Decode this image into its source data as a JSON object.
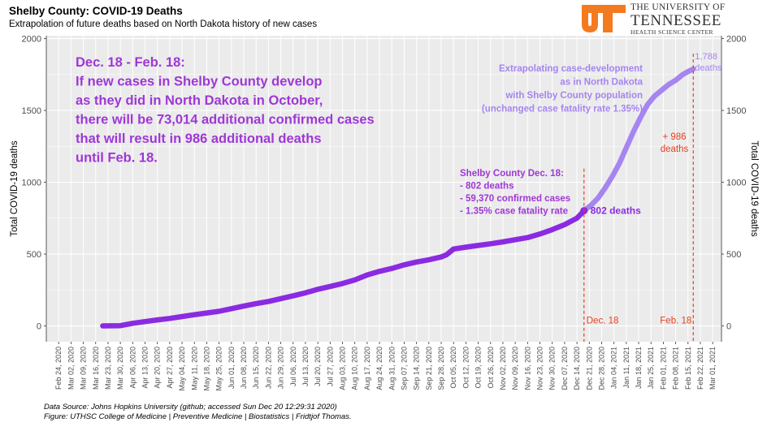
{
  "header": {
    "title": "Shelby County: COVID-19 Deaths",
    "subtitle": "Extrapolation of future deaths based on North Dakota history of new cases"
  },
  "logo": {
    "line1": "THE UNIVERSITY OF",
    "line2": "TENNESSEE",
    "line3": "HEALTH SCIENCE CENTER",
    "mark_color": "#F47A20"
  },
  "footer": {
    "source": "Data Source: Johns Hopkins University (github; accessed Sun Dec 20 12:29:31 2020)",
    "credit": "Figure: UTHSC College of Medicine | Preventive Medicine | Biostatistics | Fridtjof Thomas."
  },
  "chart_data": {
    "type": "line",
    "ylabel": "Total COVID-19 deaths",
    "ylabel_right": "Total COVID-19 deaths",
    "ylim": [
      -110,
      2020
    ],
    "yticks": [
      0,
      500,
      1000,
      1500,
      2000
    ],
    "x_tick_labels": [
      "Feb 24, 2020",
      "Mar 02, 2020",
      "Mar 09, 2020",
      "Mar 16, 2020",
      "Mar 23, 2020",
      "Mar 30, 2020",
      "Apr 06, 2020",
      "Apr 13, 2020",
      "Apr 20, 2020",
      "Apr 27, 2020",
      "May 04, 2020",
      "May 11, 2020",
      "May 18, 2020",
      "May 25, 2020",
      "Jun 01, 2020",
      "Jun 08, 2020",
      "Jun 15, 2020",
      "Jun 22, 2020",
      "Jun 29, 2020",
      "Jul 06, 2020",
      "Jul 13, 2020",
      "Jul 20, 2020",
      "Jul 27, 2020",
      "Aug 03, 2020",
      "Aug 10, 2020",
      "Aug 17, 2020",
      "Aug 24, 2020",
      "Aug 31, 2020",
      "Sep 07, 2020",
      "Sep 14, 2020",
      "Sep 21, 2020",
      "Sep 28, 2020",
      "Oct 05, 2020",
      "Oct 12, 2020",
      "Oct 19, 2020",
      "Oct 26, 2020",
      "Nov 02, 2020",
      "Nov 09, 2020",
      "Nov 16, 2020",
      "Nov 23, 2020",
      "Nov 30, 2020",
      "Dec 07, 2020",
      "Dec 14, 2020",
      "Dec 21, 2020",
      "Dec 28, 2020",
      "Jan 04, 2021",
      "Jan 11, 2021",
      "Jan 18, 2021",
      "Jan 25, 2021",
      "Feb 01, 2021",
      "Feb 08, 2021",
      "Feb 15, 2021",
      "Feb 22, 2021",
      "Mar 01, 2021"
    ],
    "grid": true,
    "series": [
      {
        "color": "#8A2BE2",
        "x": [
          "2020-03-20",
          "2020-03-30",
          "2020-04-06",
          "2020-04-13",
          "2020-04-20",
          "2020-04-27",
          "2020-05-04",
          "2020-05-11",
          "2020-05-18",
          "2020-05-25",
          "2020-06-01",
          "2020-06-08",
          "2020-06-15",
          "2020-06-22",
          "2020-06-29",
          "2020-07-06",
          "2020-07-13",
          "2020-07-20",
          "2020-07-27",
          "2020-08-03",
          "2020-08-10",
          "2020-08-17",
          "2020-08-24",
          "2020-08-31",
          "2020-09-07",
          "2020-09-14",
          "2020-09-21",
          "2020-09-28",
          "2020-10-01",
          "2020-10-05",
          "2020-10-12",
          "2020-10-19",
          "2020-10-26",
          "2020-11-02",
          "2020-11-09",
          "2020-11-16",
          "2020-11-23",
          "2020-11-30",
          "2020-12-07",
          "2020-12-14",
          "2020-12-18"
        ],
        "y": [
          0,
          2,
          18,
          30,
          42,
          52,
          65,
          78,
          90,
          102,
          120,
          138,
          155,
          170,
          190,
          210,
          230,
          255,
          275,
          295,
          320,
          355,
          380,
          400,
          425,
          445,
          460,
          480,
          495,
          535,
          548,
          560,
          572,
          585,
          600,
          615,
          640,
          670,
          705,
          750,
          802
        ]
      },
      {
        "color": "#A585F0",
        "x": [
          "2020-12-18",
          "2020-12-22",
          "2020-12-26",
          "2020-12-30",
          "2021-01-03",
          "2021-01-07",
          "2021-01-11",
          "2021-01-15",
          "2021-01-19",
          "2021-01-23",
          "2021-01-27",
          "2021-01-31",
          "2021-02-04",
          "2021-02-08",
          "2021-02-12",
          "2021-02-15",
          "2021-02-18"
        ],
        "y": [
          802,
          840,
          890,
          960,
          1040,
          1130,
          1240,
          1350,
          1450,
          1540,
          1600,
          1640,
          1680,
          1710,
          1750,
          1770,
          1788
        ]
      }
    ],
    "vlines": [
      {
        "x": "2020-12-18",
        "label": "Dec. 18",
        "color": "#E8401C"
      },
      {
        "x": "2021-02-18",
        "label": "Feb. 18",
        "color": "#E8401C"
      }
    ],
    "point_labels": [
      {
        "x": "2020-12-18",
        "y": 802,
        "text": "802 deaths"
      },
      {
        "x": "2021-02-18",
        "y": 1788,
        "lines": [
          "1,788",
          "deaths"
        ]
      }
    ],
    "annotations": {
      "headline": [
        "Dec. 18 - Feb. 18:",
        "If new cases in Shelby County develop",
        "as they did in North Dakota in October,",
        "there will be 73,014 additional confirmed cases",
        "that will result in 986 additional deaths",
        "until Feb. 18."
      ],
      "shelby": [
        "Shelby County Dec. 18:",
        " - 802 deaths",
        " - 59,370 confirmed cases",
        " - 1.35% case fatality rate"
      ],
      "extrapolation": [
        "Extrapolating case-development",
        "as in North Dakota",
        "with Shelby County population",
        "(unchanged case fatality rate 1.35%)"
      ],
      "additional": [
        "+ 986",
        "deaths"
      ]
    },
    "colors": {
      "panel": "#EBEBEB",
      "grid": "#FFFFFF",
      "observed": "#8A2BE2",
      "extrapolated": "#A585F0",
      "headline_text": "#9E37D6",
      "vline": "#E8401C"
    }
  }
}
